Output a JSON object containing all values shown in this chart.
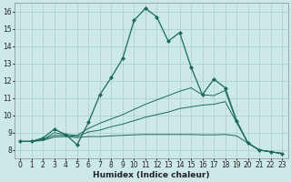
{
  "xlabel": "Humidex (Indice chaleur)",
  "xlim": [
    -0.5,
    23.5
  ],
  "ylim": [
    7.5,
    16.5
  ],
  "xticks": [
    0,
    1,
    2,
    3,
    4,
    5,
    6,
    7,
    8,
    9,
    10,
    11,
    12,
    13,
    14,
    15,
    16,
    17,
    18,
    19,
    20,
    21,
    22,
    23
  ],
  "yticks": [
    8,
    9,
    10,
    11,
    12,
    13,
    14,
    15,
    16
  ],
  "background_color": "#cce8e8",
  "grid_color": "#a8cccc",
  "line_color": "#1a6b5a",
  "line1_x": [
    0,
    1,
    2,
    3,
    4,
    5,
    6,
    7,
    8,
    9,
    10,
    11,
    12,
    13,
    14,
    15,
    16,
    17,
    18,
    19,
    20,
    21,
    22,
    23
  ],
  "line1_y": [
    8.5,
    8.5,
    8.7,
    9.2,
    8.9,
    8.3,
    9.6,
    11.2,
    12.2,
    13.3,
    15.5,
    16.2,
    15.7,
    14.3,
    14.8,
    12.8,
    11.2,
    12.1,
    11.6,
    9.7,
    8.4,
    8.0,
    7.9,
    7.8
  ],
  "line2_x": [
    0,
    1,
    2,
    3,
    4,
    5,
    6,
    7,
    8,
    9,
    10,
    11,
    12,
    13,
    14,
    15,
    16,
    17,
    18,
    19,
    20,
    21,
    22,
    23
  ],
  "line2_y": [
    8.5,
    8.5,
    8.6,
    9.0,
    8.9,
    8.85,
    9.25,
    9.55,
    9.8,
    10.05,
    10.35,
    10.65,
    10.9,
    11.15,
    11.4,
    11.6,
    11.2,
    11.15,
    11.45,
    9.65,
    8.4,
    8.0,
    7.9,
    7.8
  ],
  "line3_x": [
    0,
    1,
    2,
    3,
    4,
    5,
    6,
    7,
    8,
    9,
    10,
    11,
    12,
    13,
    14,
    15,
    16,
    17,
    18,
    19,
    20,
    21,
    22,
    23
  ],
  "line3_y": [
    8.5,
    8.5,
    8.6,
    8.85,
    8.85,
    8.78,
    9.05,
    9.15,
    9.35,
    9.5,
    9.7,
    9.9,
    10.05,
    10.2,
    10.4,
    10.5,
    10.6,
    10.65,
    10.8,
    9.6,
    8.4,
    8.0,
    7.9,
    7.8
  ],
  "line4_x": [
    0,
    1,
    2,
    3,
    4,
    5,
    6,
    7,
    8,
    9,
    10,
    11,
    12,
    13,
    14,
    15,
    16,
    17,
    18,
    19,
    20,
    21,
    22,
    23
  ],
  "line4_y": [
    8.5,
    8.5,
    8.55,
    8.75,
    8.78,
    8.72,
    8.78,
    8.78,
    8.82,
    8.85,
    8.88,
    8.9,
    8.9,
    8.9,
    8.9,
    8.9,
    8.88,
    8.88,
    8.9,
    8.82,
    8.4,
    8.0,
    7.9,
    7.8
  ]
}
